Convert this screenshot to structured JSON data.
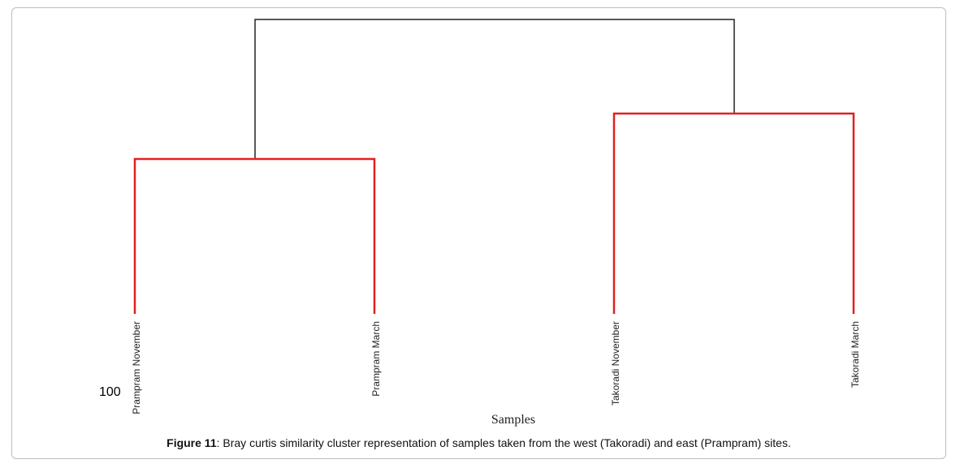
{
  "diagram": {
    "type": "dendrogram",
    "scale_label": "100",
    "axis_title": "Samples",
    "leaves": [
      {
        "label": "Prampram November"
      },
      {
        "label": "Prampram March"
      },
      {
        "label": "Takoradi November"
      },
      {
        "label": "Takoradi March"
      }
    ],
    "clusters": [
      {
        "members": [
          "Prampram November",
          "Prampram March"
        ],
        "color": "#e0201f"
      },
      {
        "members": [
          "Takoradi November",
          "Takoradi March"
        ],
        "color": "#e0201f"
      },
      {
        "members": [
          "Prampram",
          "Takoradi"
        ],
        "color": "#222222"
      }
    ],
    "colors": {
      "subcluster": "#e0201f",
      "root": "#222222"
    }
  },
  "caption": {
    "label": "Figure 11",
    "text": ": Bray curtis similarity cluster representation of samples taken from the west (Takoradi) and east (Prampram) sites."
  }
}
